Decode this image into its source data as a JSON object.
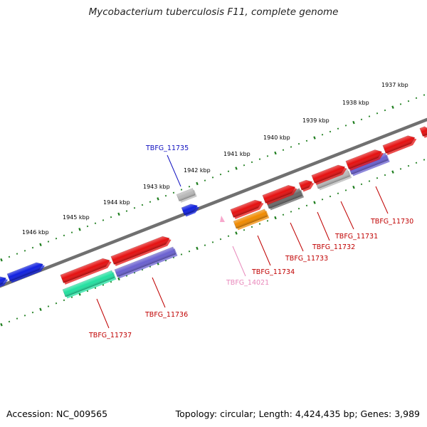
{
  "title": "Mycobacterium tuberculosis F11, complete genome",
  "footer": {
    "accession": "Accession: NC_009565",
    "summary": "Topology: circular; Length: 4,424,435 bp; Genes: 3,989"
  },
  "colors": {
    "backbone": "#707070",
    "tick": "#1e7e1e",
    "label_red": "#c00000",
    "label_blue": "#1010c0",
    "label_pink": "#e888bb",
    "red": "#e51010",
    "blue": "#1020e0",
    "grey": "#b8b8b8",
    "dark_grey": "#6a6a6a",
    "orange": "#f08a00",
    "green": "#22e0a0",
    "purple": "#6a60d0",
    "pink": "#f7a8cc"
  },
  "ticks": [
    {
      "label": "1937 kbp",
      "pos": 1937
    },
    {
      "label": "1938 kbp",
      "pos": 1938
    },
    {
      "label": "1939 kbp",
      "pos": 1939
    },
    {
      "label": "1940 kbp",
      "pos": 1940
    },
    {
      "label": "1941 kbp",
      "pos": 1941
    },
    {
      "label": "1942 kbp",
      "pos": 1942
    },
    {
      "label": "1943 kbp",
      "pos": 1943
    },
    {
      "label": "1944 kbp",
      "pos": 1944
    },
    {
      "label": "1945 kbp",
      "pos": 1945
    },
    {
      "label": "1946 kbp",
      "pos": 1946
    }
  ],
  "gene_labels": [
    {
      "id": "g11735",
      "text": "TBFG_11735",
      "color": "#1010c0"
    },
    {
      "id": "g11730",
      "text": "TBFG_11730",
      "color": "#c00000"
    },
    {
      "id": "g11731",
      "text": "TBFG_11731",
      "color": "#c00000"
    },
    {
      "id": "g11732",
      "text": "TBFG_11732",
      "color": "#c00000"
    },
    {
      "id": "g11733",
      "text": "TBFG_11733",
      "color": "#c00000"
    },
    {
      "id": "g11734",
      "text": "TBFG_11734",
      "color": "#c00000"
    },
    {
      "id": "g14021",
      "text": "TBFG_14021",
      "color": "#e888bb"
    },
    {
      "id": "g11736",
      "text": "TBFG_11736",
      "color": "#c00000"
    },
    {
      "id": "g11737",
      "text": "TBFG_11737",
      "color": "#c00000"
    }
  ]
}
